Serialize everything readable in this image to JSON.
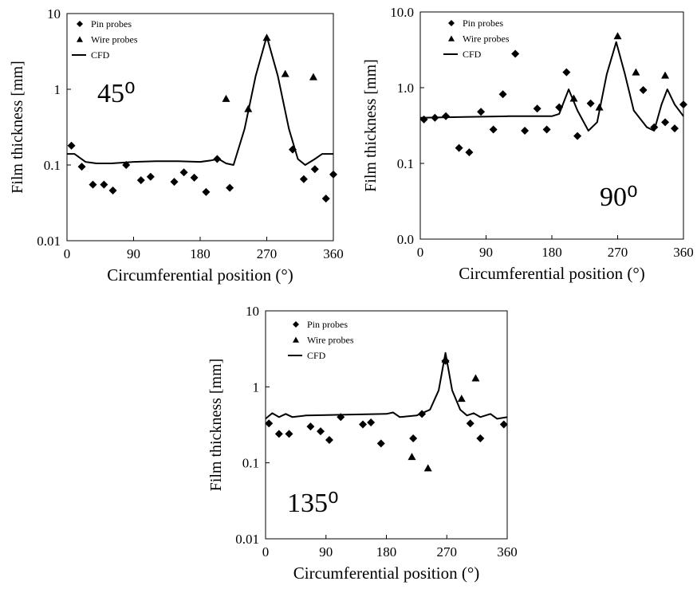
{
  "chart_data": [
    {
      "type": "scatter",
      "annotation": "45⁰",
      "xlabel": "Circumferential position (°)",
      "ylabel": "Film thickness [mm]",
      "xlim": [
        0,
        360
      ],
      "xticks": [
        0,
        90,
        180,
        270,
        360
      ],
      "ylim": [
        0.01,
        10
      ],
      "yticks": [
        0.01,
        0.1,
        1,
        10
      ],
      "ylog": true,
      "series": [
        {
          "name": "Pin probes",
          "marker": "diamond",
          "color": "#000000",
          "x": [
            6,
            20,
            35,
            50,
            62,
            80,
            100,
            113,
            145,
            158,
            172,
            188,
            203,
            220,
            305,
            320,
            335,
            350,
            360
          ],
          "values": [
            0.18,
            0.095,
            0.055,
            0.055,
            0.046,
            0.1,
            0.063,
            0.07,
            0.06,
            0.08,
            0.068,
            0.044,
            0.12,
            0.05,
            0.16,
            0.065,
            0.088,
            0.036,
            0.075
          ]
        },
        {
          "name": "Wire probes",
          "marker": "triangle",
          "color": "#000000",
          "x": [
            215,
            245,
            270,
            295,
            333
          ],
          "values": [
            0.75,
            0.55,
            4.8,
            1.6,
            1.45
          ]
        },
        {
          "name": "CFD",
          "marker": "line",
          "color": "#000000",
          "x": [
            0,
            10,
            25,
            40,
            60,
            90,
            120,
            150,
            180,
            195,
            205,
            215,
            225,
            240,
            255,
            270,
            285,
            300,
            312,
            322,
            335,
            345,
            360
          ],
          "values": [
            0.14,
            0.14,
            0.11,
            0.105,
            0.105,
            0.11,
            0.112,
            0.112,
            0.11,
            0.115,
            0.12,
            0.105,
            0.1,
            0.3,
            1.5,
            5.0,
            1.5,
            0.3,
            0.12,
            0.1,
            0.12,
            0.14,
            0.14
          ]
        }
      ]
    },
    {
      "type": "scatter",
      "annotation": "90⁰",
      "xlabel": "Circumferential position (°)",
      "ylabel": "Film thickness [mm]",
      "xlim": [
        0,
        360
      ],
      "xticks": [
        0,
        90,
        180,
        270,
        360
      ],
      "ylim": [
        0.01,
        10
      ],
      "yticks": [
        {
          "value": 0.01,
          "label": "0.0"
        },
        {
          "value": 0.1,
          "label": "0.1"
        },
        {
          "value": 1,
          "label": "1.0"
        },
        {
          "value": 10,
          "label": "10.0"
        }
      ],
      "ylog": true,
      "series": [
        {
          "name": "Pin probes",
          "marker": "diamond",
          "color": "#000000",
          "x": [
            5,
            20,
            35,
            53,
            67,
            83,
            100,
            113,
            130,
            143,
            160,
            173,
            190,
            200,
            215,
            233,
            305,
            320,
            335,
            348,
            360
          ],
          "values": [
            0.38,
            0.4,
            0.42,
            0.16,
            0.14,
            0.48,
            0.28,
            0.82,
            2.8,
            0.27,
            0.53,
            0.28,
            0.55,
            1.6,
            0.23,
            0.62,
            0.93,
            0.3,
            0.35,
            0.29,
            0.6
          ]
        },
        {
          "name": "Wire probes",
          "marker": "triangle",
          "color": "#000000",
          "x": [
            210,
            245,
            270,
            295,
            335
          ],
          "values": [
            0.72,
            0.55,
            4.8,
            1.6,
            1.45
          ]
        },
        {
          "name": "CFD",
          "marker": "line",
          "color": "#000000",
          "x": [
            0,
            60,
            120,
            180,
            190,
            203,
            215,
            230,
            242,
            255,
            268,
            280,
            292,
            310,
            320,
            330,
            338,
            348,
            360
          ],
          "values": [
            0.4,
            0.41,
            0.42,
            0.42,
            0.45,
            0.95,
            0.5,
            0.27,
            0.35,
            1.5,
            4.0,
            1.5,
            0.5,
            0.3,
            0.27,
            0.6,
            0.95,
            0.6,
            0.42
          ]
        }
      ]
    },
    {
      "type": "scatter",
      "annotation": "135⁰",
      "xlabel": "Circumferential position (°)",
      "ylabel": "Film thickness [mm]",
      "xlim": [
        0,
        360
      ],
      "xticks": [
        0,
        90,
        180,
        270,
        360
      ],
      "ylim": [
        0.01,
        10
      ],
      "yticks": [
        0.01,
        0.1,
        1,
        10
      ],
      "ylog": true,
      "series": [
        {
          "name": "Pin probes",
          "marker": "diamond",
          "color": "#000000",
          "x": [
            5,
            20,
            35,
            67,
            82,
            95,
            112,
            145,
            157,
            172,
            220,
            233,
            268,
            305,
            320,
            355
          ],
          "values": [
            0.33,
            0.24,
            0.24,
            0.3,
            0.26,
            0.2,
            0.4,
            0.32,
            0.34,
            0.18,
            0.21,
            0.44,
            2.2,
            0.33,
            0.21,
            0.32
          ]
        },
        {
          "name": "Wire probes",
          "marker": "triangle",
          "color": "#000000",
          "x": [
            218,
            242,
            268,
            292,
            313
          ],
          "values": [
            0.12,
            0.085,
            2.3,
            0.7,
            1.3
          ]
        },
        {
          "name": "CFD",
          "marker": "line",
          "color": "#000000",
          "x": [
            0,
            10,
            20,
            30,
            40,
            60,
            120,
            180,
            190,
            200,
            225,
            245,
            258,
            268,
            278,
            290,
            300,
            310,
            320,
            335,
            345,
            360
          ],
          "values": [
            0.38,
            0.45,
            0.4,
            0.44,
            0.4,
            0.42,
            0.43,
            0.44,
            0.46,
            0.4,
            0.42,
            0.5,
            0.9,
            2.8,
            0.9,
            0.5,
            0.42,
            0.45,
            0.4,
            0.44,
            0.38,
            0.4
          ]
        }
      ]
    }
  ]
}
